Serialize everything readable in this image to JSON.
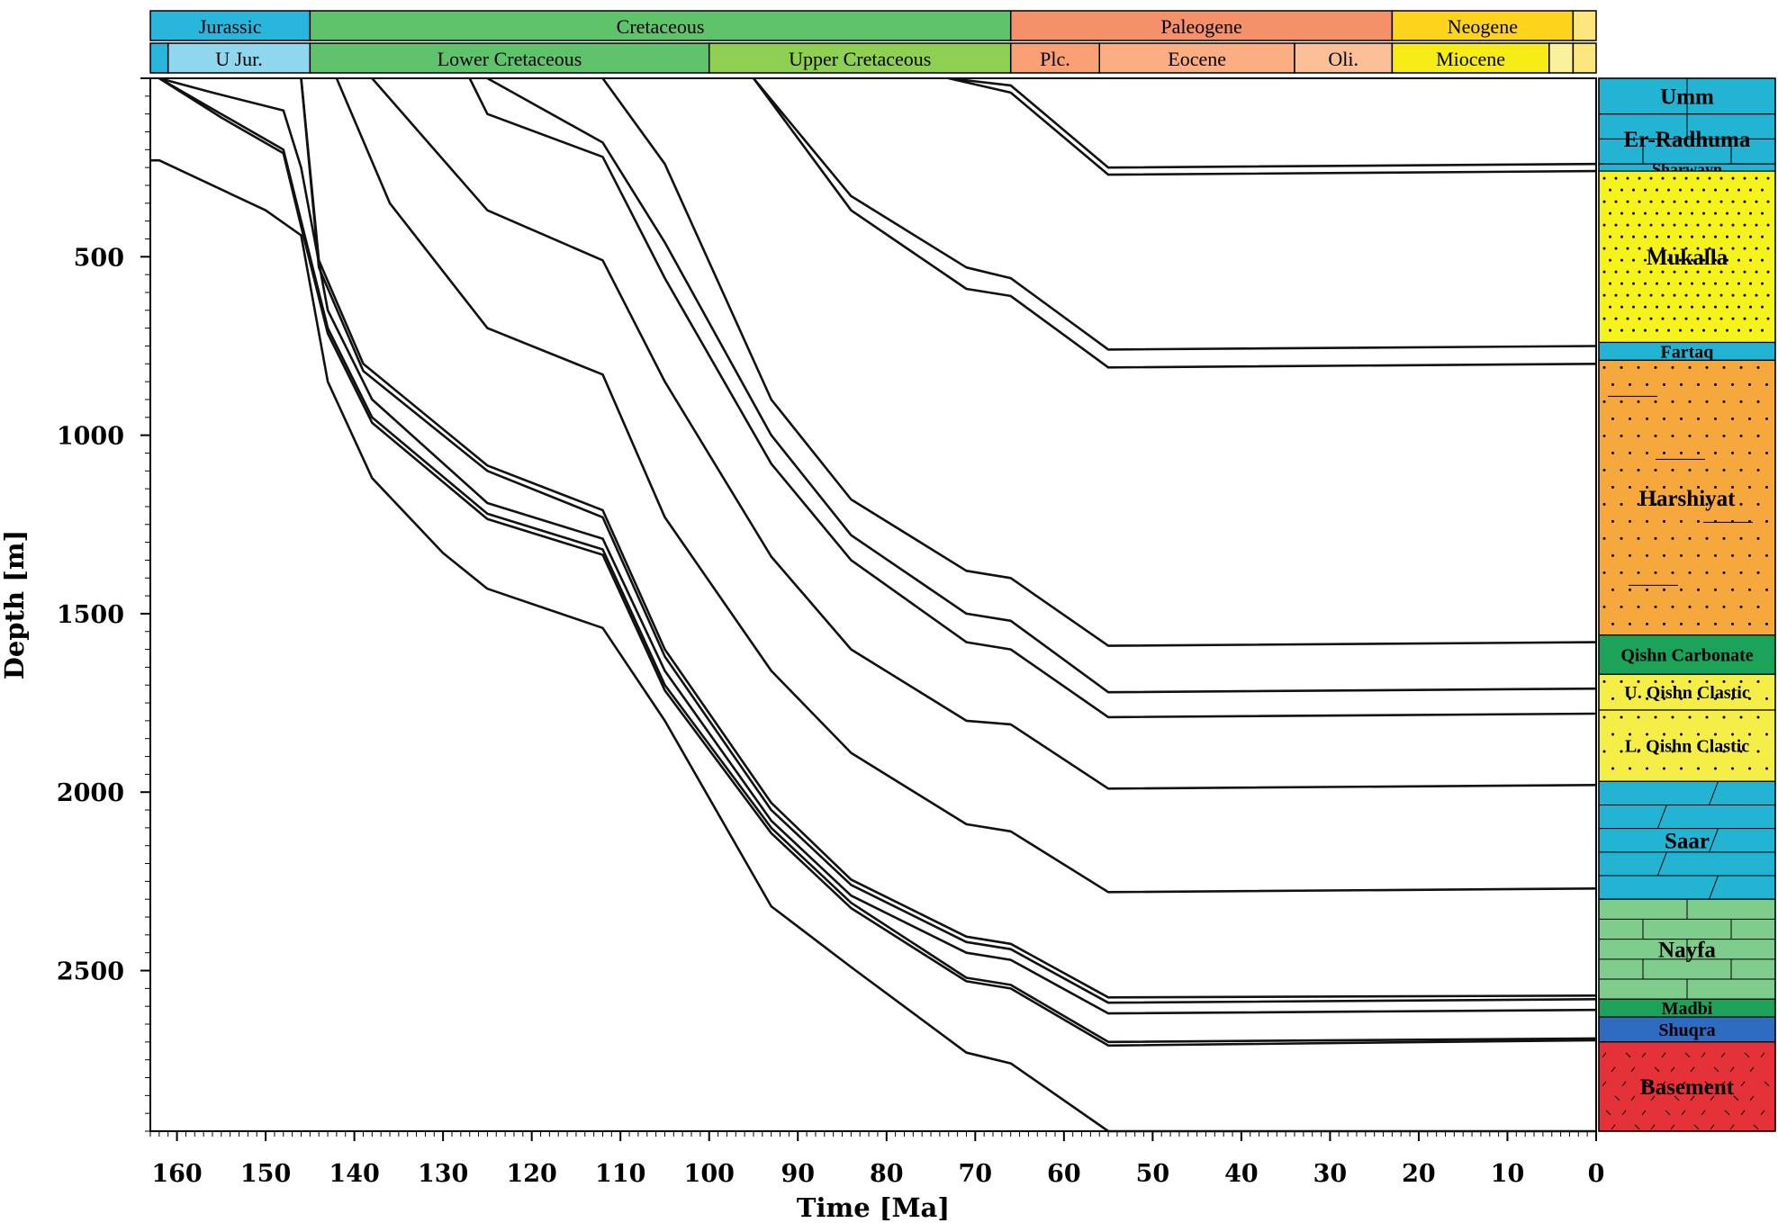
{
  "chart_data": {
    "type": "line",
    "title": "",
    "xlabel": "Time [Ma]",
    "ylabel": "Depth [m]",
    "xlim": [
      163,
      0
    ],
    "ylim": [
      0,
      2950
    ],
    "x_ticks": [
      160,
      150,
      140,
      130,
      120,
      110,
      100,
      90,
      80,
      70,
      60,
      50,
      40,
      30,
      20,
      10,
      0
    ],
    "y_ticks": [
      500,
      1000,
      1500,
      2000,
      2500
    ],
    "periods": [
      {
        "label": "Jurassic",
        "from": 163,
        "to": 145,
        "color": "#29b6dc"
      },
      {
        "label": "Cretaceous",
        "from": 145,
        "to": 66,
        "color": "#5fc36b"
      },
      {
        "label": "Paleogene",
        "from": 66,
        "to": 23,
        "color": "#f4906a"
      },
      {
        "label": "Neogene",
        "from": 23,
        "to": 2.6,
        "color": "#fdd31c"
      },
      {
        "label": "",
        "from": 2.6,
        "to": 0,
        "color": "#fbe77e"
      }
    ],
    "epochs": [
      {
        "label": "",
        "from": 163,
        "to": 161,
        "color": "#29b6dc"
      },
      {
        "label": "U Jur.",
        "from": 161,
        "to": 145,
        "color": "#8fd6ef"
      },
      {
        "label": "Lower Cretaceous",
        "from": 145,
        "to": 100,
        "color": "#5fc36b"
      },
      {
        "label": "Upper Cretaceous",
        "from": 100,
        "to": 66,
        "color": "#8ed052"
      },
      {
        "label": "Plc.",
        "from": 66,
        "to": 56,
        "color": "#f9a075"
      },
      {
        "label": "Eocene",
        "from": 56,
        "to": 34,
        "color": "#fbae82"
      },
      {
        "label": "Oli.",
        "from": 34,
        "to": 23,
        "color": "#fbbf98"
      },
      {
        "label": "Miocene",
        "from": 23,
        "to": 5.3,
        "color": "#f7ec16"
      },
      {
        "label": "",
        "from": 5.3,
        "to": 2.6,
        "color": "#fbf09b"
      },
      {
        "label": "",
        "from": 2.6,
        "to": 0,
        "color": "#fbe77e"
      }
    ],
    "series": [
      {
        "x": [
          163,
          162,
          150,
          146,
          143,
          138,
          130,
          125,
          112,
          105,
          93,
          84,
          71,
          66,
          55,
          0
        ],
        "y": [
          230,
          230,
          370,
          440,
          850,
          1120,
          1330,
          1430,
          1540,
          1800,
          2320,
          2490,
          2730,
          2760,
          2950,
          2950
        ]
      },
      {
        "x": [
          162,
          155,
          148,
          146,
          143,
          138,
          125,
          112,
          105,
          93,
          84,
          71,
          66,
          55,
          0
        ],
        "y": [
          0,
          100,
          200,
          400,
          700,
          950,
          1220,
          1320,
          1700,
          2100,
          2310,
          2520,
          2540,
          2700,
          2690
        ]
      },
      {
        "x": [
          162,
          155,
          148,
          146,
          143,
          138,
          125,
          112,
          105,
          93,
          84,
          71,
          66,
          55,
          0
        ],
        "y": [
          0,
          110,
          210,
          415,
          715,
          965,
          1235,
          1335,
          1715,
          2115,
          2325,
          2530,
          2550,
          2710,
          2695
        ]
      },
      {
        "x": [
          162,
          156,
          148,
          146,
          143,
          138,
          125,
          112,
          105,
          93,
          84,
          71,
          66,
          55,
          0
        ],
        "y": [
          0,
          40,
          90,
          250,
          650,
          900,
          1190,
          1290,
          1660,
          2080,
          2290,
          2450,
          2470,
          2620,
          2610
        ]
      },
      {
        "x": [
          146,
          144,
          139,
          125,
          112,
          105,
          93,
          84,
          71,
          66,
          55,
          0
        ],
        "y": [
          0,
          530,
          820,
          1100,
          1230,
          1620,
          2050,
          2260,
          2420,
          2440,
          2590,
          2580
        ]
      },
      {
        "x": [
          146,
          144,
          139,
          125,
          112,
          105,
          93,
          84,
          71,
          66,
          55,
          0
        ],
        "y": [
          0,
          510,
          800,
          1085,
          1210,
          1600,
          2030,
          2245,
          2405,
          2425,
          2575,
          2570
        ]
      },
      {
        "x": [
          142,
          136,
          125,
          112,
          105,
          93,
          84,
          71,
          66,
          55,
          0
        ],
        "y": [
          0,
          350,
          700,
          830,
          1230,
          1660,
          1890,
          2090,
          2110,
          2280,
          2270
        ]
      },
      {
        "x": [
          138,
          125,
          112,
          105,
          93,
          84,
          71,
          66,
          55,
          0
        ],
        "y": [
          0,
          370,
          510,
          850,
          1340,
          1600,
          1800,
          1810,
          1990,
          1980
        ]
      },
      {
        "x": [
          127,
          125,
          112,
          105,
          93,
          84,
          71,
          66,
          55,
          0
        ],
        "y": [
          0,
          100,
          220,
          560,
          1080,
          1350,
          1580,
          1600,
          1790,
          1780
        ]
      },
      {
        "x": [
          125,
          112,
          105,
          93,
          84,
          71,
          66,
          55,
          0
        ],
        "y": [
          0,
          180,
          460,
          1000,
          1280,
          1500,
          1520,
          1720,
          1710
        ]
      },
      {
        "x": [
          112,
          105,
          93,
          84,
          71,
          66,
          55,
          0
        ],
        "y": [
          0,
          240,
          900,
          1180,
          1380,
          1400,
          1590,
          1580
        ]
      },
      {
        "x": [
          95,
          84,
          71,
          66,
          55,
          0
        ],
        "y": [
          0,
          330,
          530,
          560,
          760,
          750
        ]
      },
      {
        "x": [
          95,
          84,
          71,
          66,
          55,
          0
        ],
        "y": [
          0,
          370,
          590,
          610,
          810,
          800
        ]
      },
      {
        "x": [
          73,
          66,
          55,
          0
        ],
        "y": [
          0,
          20,
          250,
          240
        ]
      },
      {
        "x": [
          73,
          66,
          55,
          0
        ],
        "y": [
          0,
          40,
          270,
          260
        ]
      }
    ],
    "formations": [
      {
        "label": "Umm",
        "top": 0,
        "bottom": 100,
        "color": "#22b4d2",
        "pattern": "limestone"
      },
      {
        "label": "Er-Radhuma",
        "top": 100,
        "bottom": 240,
        "color": "#22b4d2",
        "pattern": "limestone"
      },
      {
        "label": "Sharwayn",
        "top": 240,
        "bottom": 260,
        "color": "#22b4d2",
        "pattern": "limestone"
      },
      {
        "label": "Mukalla",
        "top": 260,
        "bottom": 740,
        "color": "#f6f21c",
        "pattern": "dots"
      },
      {
        "label": "Fartaq",
        "top": 740,
        "bottom": 790,
        "color": "#22b4d2",
        "pattern": "none"
      },
      {
        "label": "Harshiyat",
        "top": 790,
        "bottom": 1560,
        "color": "#f7a83c",
        "pattern": "sand"
      },
      {
        "label": "Qishn Carbonate",
        "top": 1560,
        "bottom": 1670,
        "color": "#1da25a",
        "pattern": "none"
      },
      {
        "label": "U. Qishn Clastic",
        "top": 1670,
        "bottom": 1770,
        "color": "#f4ee46",
        "pattern": "sand"
      },
      {
        "label": "L. Qishn Clastic",
        "top": 1770,
        "bottom": 1970,
        "color": "#f4ee46",
        "pattern": "sand"
      },
      {
        "label": "Saar",
        "top": 1970,
        "bottom": 2300,
        "color": "#22b4d2",
        "pattern": "dolomite"
      },
      {
        "label": "Nayfa",
        "top": 2300,
        "bottom": 2580,
        "color": "#7fcd8c",
        "pattern": "limestone"
      },
      {
        "label": "Madbi",
        "top": 2580,
        "bottom": 2630,
        "color": "#1da25a",
        "pattern": "none"
      },
      {
        "label": "Shuqra",
        "top": 2630,
        "bottom": 2700,
        "color": "#2e6cc2",
        "pattern": "none"
      },
      {
        "label": "Basement",
        "top": 2700,
        "bottom": 2950,
        "color": "#e53238",
        "pattern": "dash"
      }
    ]
  }
}
